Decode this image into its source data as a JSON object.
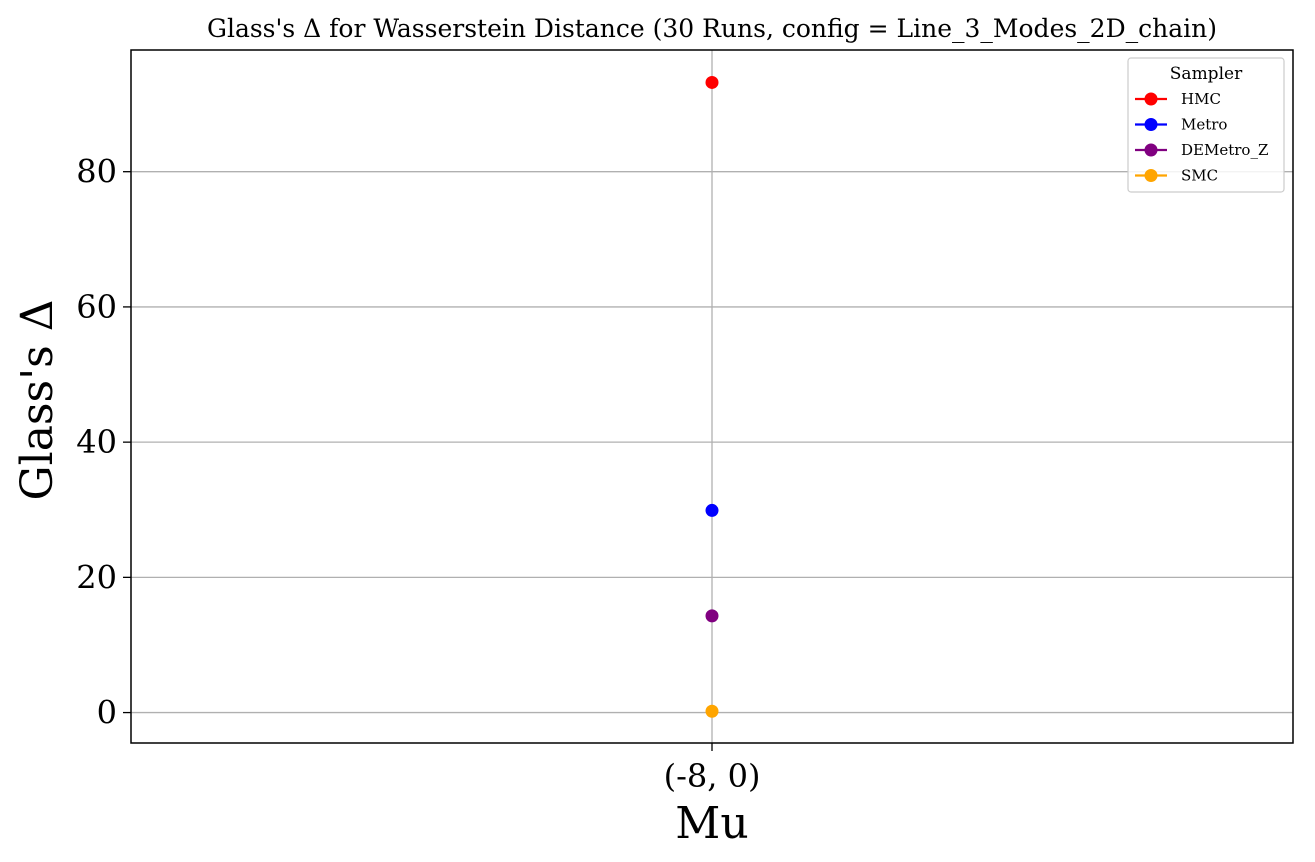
{
  "chart_data": {
    "type": "scatter",
    "title": "Glass's Δ for Wasserstein Distance (30 Runs, config = Line_3_Modes_2D_chain)",
    "xlabel": "Mu",
    "ylabel": "Glass's Δ",
    "categories": [
      "(-8, 0)"
    ],
    "ylim": [
      -4.5,
      98
    ],
    "yticks": [
      0,
      20,
      40,
      60,
      80
    ],
    "yticklabels": [
      "0",
      "20",
      "40",
      "60",
      "80"
    ],
    "grid": true,
    "legend": {
      "title": "Sampler",
      "placement": "top-right"
    },
    "series": [
      {
        "name": "HMC",
        "color": "#ff0000",
        "values": [
          93.2
        ]
      },
      {
        "name": "Metro",
        "color": "#0000ff",
        "values": [
          29.9
        ]
      },
      {
        "name": "DEMetro_Z",
        "color": "#800080",
        "values": [
          14.3
        ]
      },
      {
        "name": "SMC",
        "color": "#ffa500",
        "values": [
          0.2
        ]
      }
    ]
  }
}
